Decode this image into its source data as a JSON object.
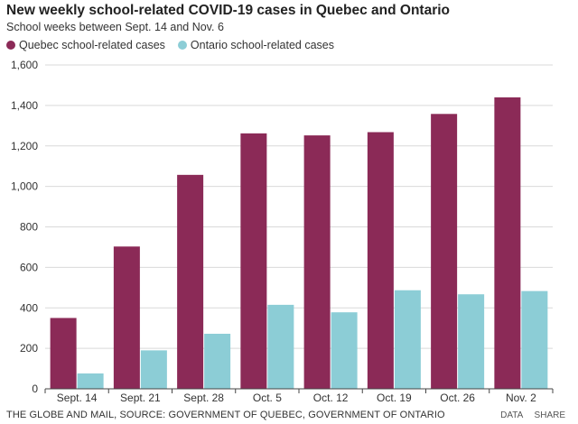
{
  "title": "New weekly school-related COVID-19 cases in Quebec and Ontario",
  "subtitle": "School weeks between Sept. 14 and Nov. 6",
  "source": "THE GLOBE AND MAIL, SOURCE: GOVERNMENT OF QUEBEC, GOVERNMENT OF ONTARIO",
  "tools": {
    "data_label": "DATA",
    "share_label": "SHARE"
  },
  "colors": {
    "quebec": "#8b2a57",
    "ontario": "#8ccdd6",
    "grid": "#d9d9d9",
    "axis": "#444444"
  },
  "chart_data": {
    "type": "bar",
    "categories": [
      "Sept. 14",
      "Sept. 21",
      "Sept. 28",
      "Oct. 5",
      "Oct. 12",
      "Oct. 19",
      "Oct. 26",
      "Nov. 2"
    ],
    "series": [
      {
        "name": "Quebec school-related cases",
        "color": "#8b2a57",
        "values": [
          350,
          703,
          1057,
          1262,
          1252,
          1268,
          1358,
          1440
        ]
      },
      {
        "name": "Ontario school-related cases",
        "color": "#8ccdd6",
        "values": [
          76,
          190,
          272,
          415,
          378,
          487,
          467,
          483
        ]
      }
    ],
    "ylim": [
      0,
      1600
    ],
    "yticks": [
      0,
      200,
      400,
      600,
      800,
      1000,
      1200,
      1400,
      1600
    ],
    "ytick_labels": [
      "0",
      "200",
      "400",
      "600",
      "800",
      "1,000",
      "1,200",
      "1,400",
      "1,600"
    ],
    "grid": true,
    "legend": "top-left"
  }
}
